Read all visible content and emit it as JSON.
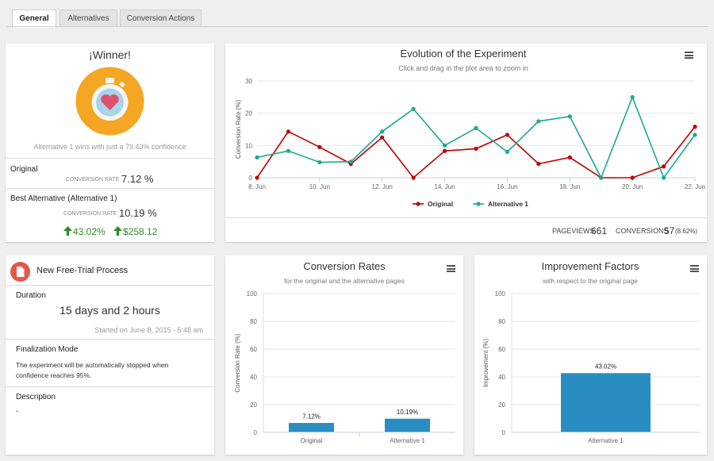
{
  "tabs": [
    {
      "label": "General"
    },
    {
      "label": "Alternatives"
    },
    {
      "label": "Conversion Actions"
    }
  ],
  "winner": {
    "title": "¡Winner!",
    "subtitle": "Alternative 1 wins with just a 79.43% confidence",
    "original_label": "Original",
    "cr_label": "CONVERSION RATE",
    "original_rate": "7.12 %",
    "best_label": "Best Alternative (Alternative 1)",
    "best_rate": "10.19 %",
    "improvement_pct": "43.02%",
    "improvement_value": "$258.12",
    "colors": {
      "badge": "#f5a623",
      "positive": "#2e8b2e"
    }
  },
  "evolution": {
    "stats": {
      "pageviews_label": "PAGEVIEWS",
      "pageviews": "661",
      "conversions_label": "CONVERSIONS",
      "conversions": "57",
      "conversions_pct": "(8.62%)"
    }
  },
  "experiment": {
    "title": "New Free-Trial Process",
    "duration_label": "Duration",
    "duration": "15 days and 2 hours",
    "started": "Started on June 8, 2015 - 5:48 am",
    "finalization_label": "Finalization Mode",
    "finalization_text_1": "The experiment will be automatically stopped when",
    "finalization_text_2": "confidence reaches 95%.",
    "description_label": "Description",
    "description": "-",
    "icon_color": "#e05a4a"
  },
  "chart_data": [
    {
      "type": "line",
      "title": "Evolution of the Experiment",
      "subtitle": "Click and drag in the plot area to zoom in",
      "ylabel": "Conversion Rate (%)",
      "xlabel": "",
      "ylim": [
        0,
        30
      ],
      "yticks": [
        0,
        10,
        20,
        30
      ],
      "x": [
        "8. Jun",
        "9. Jun",
        "10. Jun",
        "11. Jun",
        "12. Jun",
        "13. Jun",
        "14. Jun",
        "15. Jun",
        "16. Jun",
        "17. Jun",
        "18. Jun",
        "19. Jun",
        "20. Jun",
        "21. Jun",
        "22. Jun"
      ],
      "xticks": [
        "8. Jun",
        "10. Jun",
        "12. Jun",
        "14. Jun",
        "16. Jun",
        "18. Jun",
        "20. Jun",
        "22. Jun"
      ],
      "series": [
        {
          "name": "Original",
          "color": "#c00000",
          "values": [
            0,
            14.3,
            9.5,
            4.3,
            12.5,
            0,
            8.3,
            9,
            13.3,
            4.3,
            6.3,
            0,
            0,
            3.5,
            15.8
          ]
        },
        {
          "name": "Alternative 1",
          "color": "#1aaa8e",
          "values": [
            6.3,
            8.3,
            4.8,
            5,
            14.3,
            21.3,
            10,
            15.4,
            8,
            17.5,
            19,
            0,
            25,
            0,
            13.3
          ]
        }
      ]
    },
    {
      "type": "bar",
      "title": "Conversion Rates",
      "subtitle": "for the original and the alternative pages",
      "ylabel": "Conversion Rate (%)",
      "xlabel": "",
      "ylim": [
        0,
        100
      ],
      "yticks": [
        0,
        20,
        40,
        60,
        80,
        100
      ],
      "categories": [
        "Original",
        "Alternative 1"
      ],
      "values": [
        7.12,
        10.19
      ],
      "labels": [
        "7.12%",
        "10.19%"
      ],
      "color": "#2a8dc2"
    },
    {
      "type": "bar",
      "title": "Improvement Factors",
      "subtitle": "with respect to the original page",
      "ylabel": "Improvement (%)",
      "xlabel": "",
      "ylim": [
        0,
        100
      ],
      "yticks": [
        0,
        20,
        40,
        60,
        80,
        100
      ],
      "categories": [
        "Alternative 1"
      ],
      "values": [
        43.02
      ],
      "labels": [
        "43.02%"
      ],
      "color": "#2a8dc2"
    }
  ]
}
